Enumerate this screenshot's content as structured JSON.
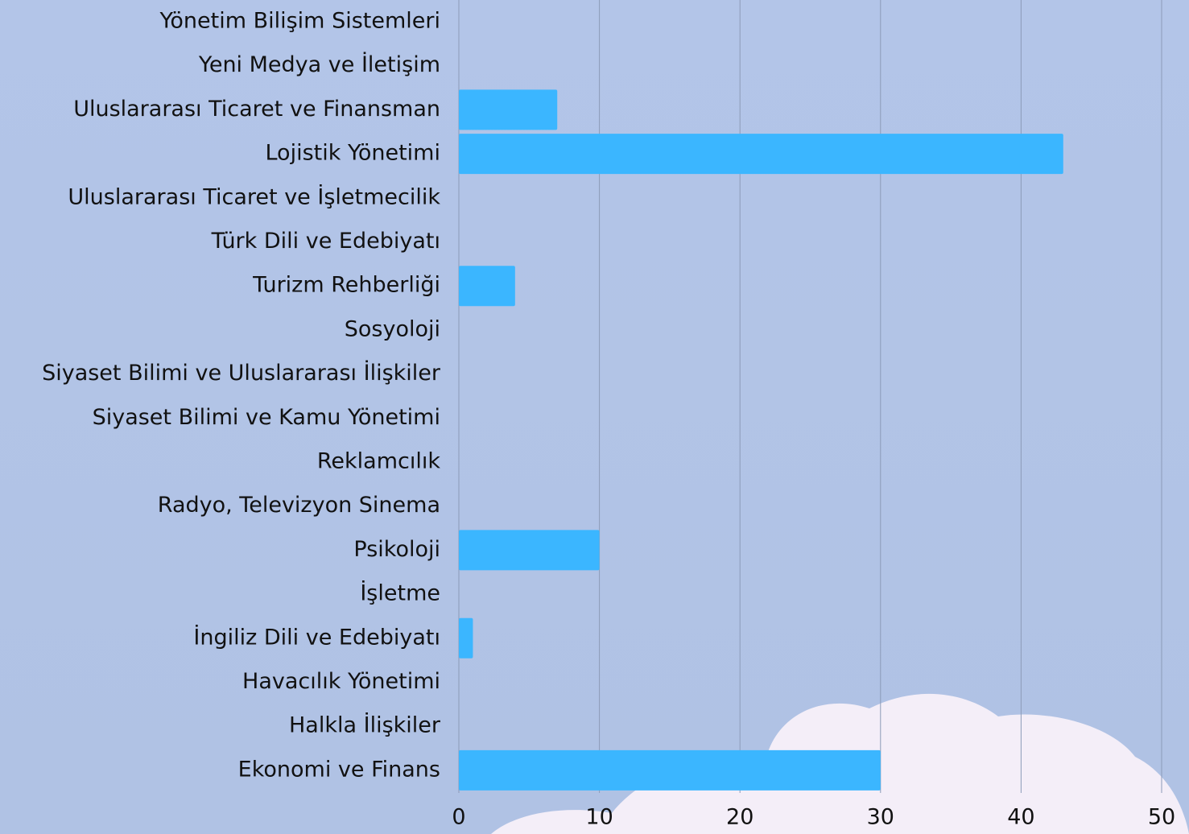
{
  "chart_data": {
    "type": "bar",
    "orientation": "horizontal",
    "categories": [
      "Yönetim Bilişim Sistemleri",
      "Yeni Medya ve İletişim",
      "Uluslararası Ticaret ve Finansman",
      "Lojistik Yönetimi",
      "Uluslararası Ticaret ve İşletmecilik",
      "Türk Dili ve Edebiyatı",
      "Turizm Rehberliği",
      "Sosyoloji",
      "Siyaset Bilimi ve Uluslararası İlişkiler",
      "Siyaset Bilimi ve Kamu Yönetimi",
      "Reklamcılık",
      "Radyo, Televizyon Sinema",
      "Psikoloji",
      "İşletme",
      "İngiliz Dili ve Edebiyatı",
      "Havacılık Yönetimi",
      "Halkla İlişkiler",
      "Ekonomi ve Finans"
    ],
    "values": [
      0,
      0,
      7,
      43,
      0,
      0,
      4,
      0,
      0,
      0,
      0,
      0,
      10,
      0,
      1,
      0,
      0,
      30
    ],
    "color": "#3bb6ff",
    "xlim": [
      0,
      50
    ],
    "xticks": [
      0,
      10,
      20,
      30,
      40,
      50
    ],
    "grid": true
  }
}
